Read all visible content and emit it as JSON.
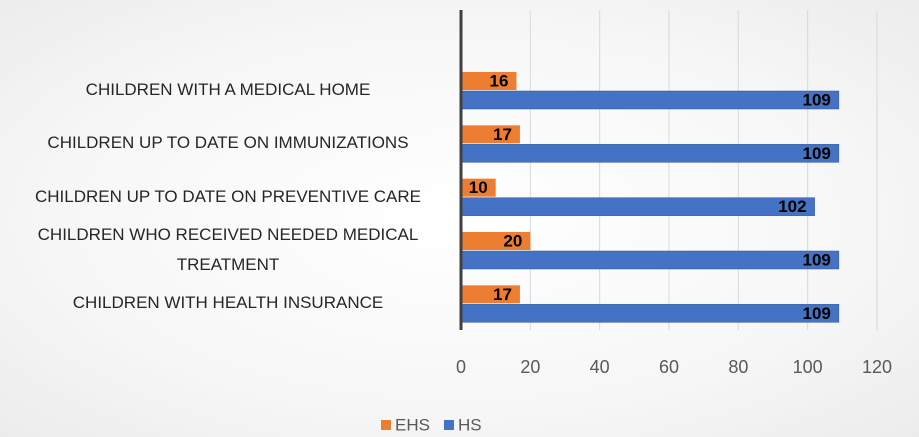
{
  "chart_data": {
    "type": "bar",
    "orientation": "horizontal",
    "categories": [
      null,
      "CHILDREN WITH A MEDICAL HOME",
      "CHILDREN UP TO DATE ON IMMUNIZATIONS",
      "CHILDREN UP TO DATE ON PREVENTIVE CARE",
      "CHILDREN WHO RECEIVED NEEDED MEDICAL TREATMENT",
      "CHILDREN WITH HEALTH INSURANCE"
    ],
    "series": [
      {
        "name": "EHS",
        "color": "#ed7d31",
        "values": [
          null,
          16,
          17,
          10,
          20,
          17
        ]
      },
      {
        "name": "HS",
        "color": "#4472c4",
        "values": [
          null,
          109,
          109,
          102,
          109,
          109
        ]
      }
    ],
    "xlim": [
      0,
      120
    ],
    "xticks": [
      0,
      20,
      40,
      60,
      80,
      100,
      120
    ],
    "grid": true,
    "legend": "bottom"
  }
}
